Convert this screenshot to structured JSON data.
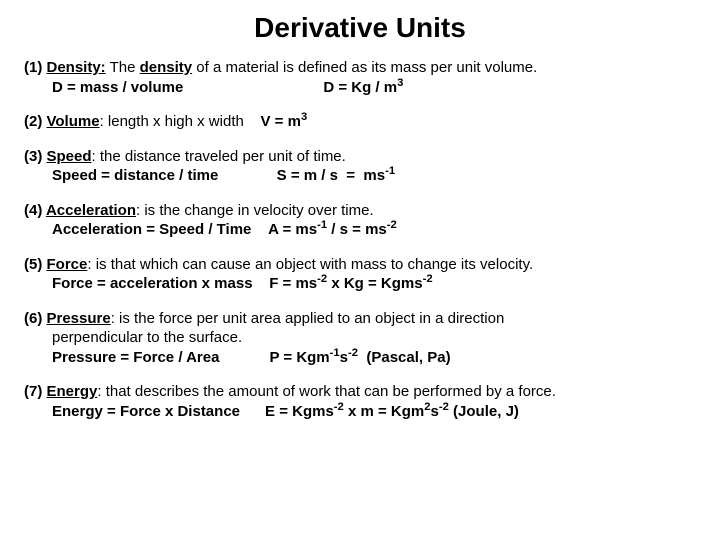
{
  "title": "Derivative Units",
  "items": [
    {
      "num": "(1)",
      "term": "Density:",
      "desc_html": " The <span class='term'>density</span> of a material is defined as its mass per unit volume.",
      "line2_html": "<span class='b'>D = mass / volume</span><span class='spacer'></span><span class='formula'>D = Kg / m<sup>3</sup></span>"
    },
    {
      "num": "(2)",
      "term": "Volume",
      "desc_html": ": length x high x width &nbsp;&nbsp;&nbsp;<span class='formula'>V = m<sup>3</sup></span>",
      "line2_html": ""
    },
    {
      "num": "(3)",
      "term": "Speed",
      "desc_html": ": the distance traveled per unit of time.",
      "line2_html": "<span class='b'>Speed = distance / time</span>&nbsp;&nbsp;&nbsp;&nbsp;&nbsp;&nbsp;&nbsp;&nbsp;&nbsp;&nbsp;&nbsp;&nbsp;&nbsp;&nbsp;<span class='formula'>S = m / s &nbsp;= &nbsp;ms<sup>-1</sup></span>"
    },
    {
      "num": "(4)",
      "term": "Acceleration",
      "desc_html": ": is the change in velocity over time.",
      "line2_html": "<span class='b'>Acceleration = Speed / Time</span>&nbsp;&nbsp;&nbsp;&nbsp;<span class='formula'>A = ms<sup>-1</sup> / s = ms<sup>-2</sup></span>"
    },
    {
      "num": "(5)",
      "term": "Force",
      "desc_html": ": is that which can cause an object with mass to change its velocity.",
      "line2_html": "<span class='b'>Force = acceleration x mass</span>&nbsp;&nbsp;&nbsp;&nbsp;<span class='formula'>F = ms<sup>-2</sup> x Kg = Kgms<sup>-2</sup></span>"
    },
    {
      "num": "(6)",
      "term": "Pressure",
      "desc_html": ": is the force per unit area applied to an object in a direction<br><span class='indent'>perpendicular to the surface.</span>",
      "line2_html": "<span class='b'>Pressure = Force / Area</span>&nbsp;&nbsp;&nbsp;&nbsp;&nbsp;&nbsp;&nbsp;&nbsp;&nbsp;&nbsp;&nbsp;&nbsp;<span class='formula'>P = Kgm<sup>-1</sup>s<sup>-2</sup> &nbsp;(Pascal, Pa)</span>"
    },
    {
      "num": "(7)",
      "term": "Energy",
      "desc_html": ": that describes the amount of work that can be performed by a force.",
      "line2_html": "<span class='b'>Energy = Force x Distance</span>&nbsp;&nbsp;&nbsp;&nbsp;&nbsp;&nbsp;<span class='formula'>E = Kgms<sup>-2</sup> x m = Kgm<sup>2</sup>s<sup>-2</sup>  (Joule, J)</span>"
    }
  ]
}
